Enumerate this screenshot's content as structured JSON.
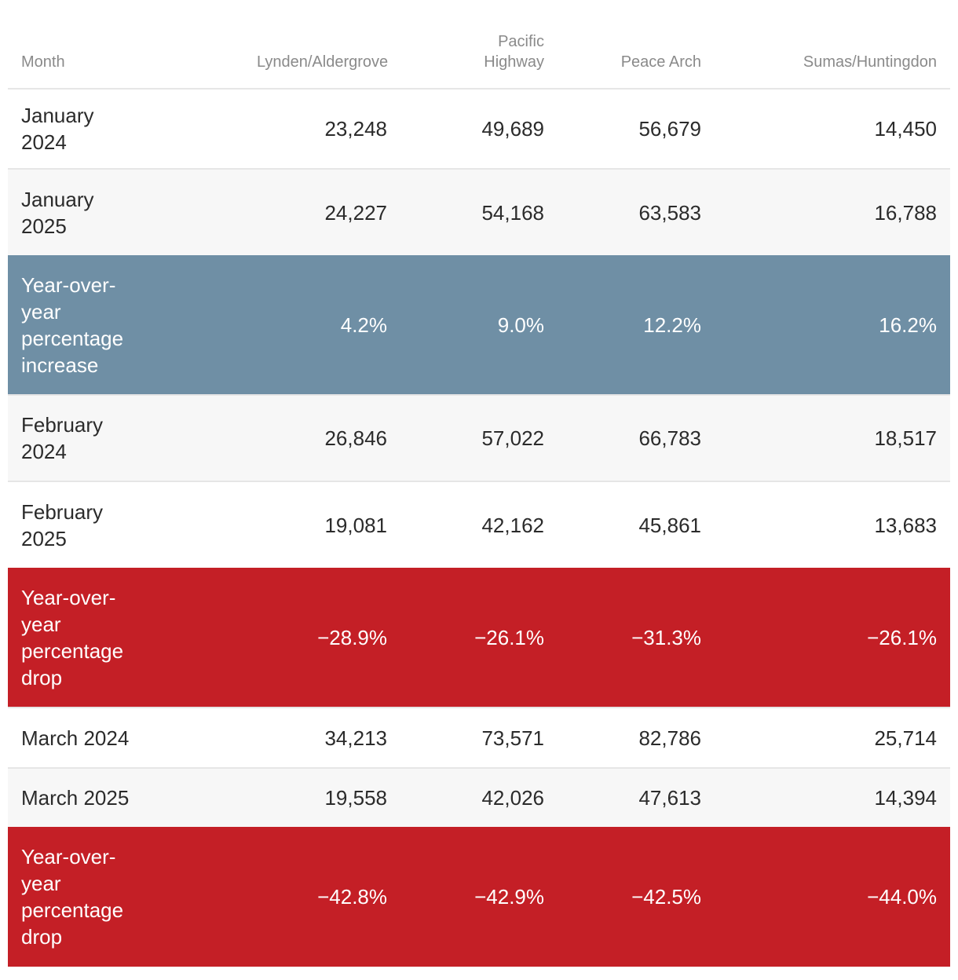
{
  "table": {
    "columns": [
      "Month",
      "Lynden/Aldergrove",
      "Pacific Highway",
      "Peace Arch",
      "Sumas/Huntingdon"
    ],
    "rows": [
      [
        "January 2024",
        "23,248",
        "49,689",
        "56,679",
        "14,450"
      ],
      [
        "January 2025",
        "24,227",
        "54,168",
        "63,583",
        "16,788"
      ],
      [
        "Year-over-year percentage increase",
        "4.2%",
        "9.0%",
        "12.2%",
        "16.2%"
      ],
      [
        "February 2024",
        "26,846",
        "57,022",
        "66,783",
        "18,517"
      ],
      [
        "February 2025",
        "19,081",
        "42,162",
        "45,861",
        "13,683"
      ],
      [
        "Year-over-year percentage drop",
        "−28.9%",
        "−26.1%",
        "−31.3%",
        "−26.1%"
      ],
      [
        "March 2024",
        "34,213",
        "73,571",
        "82,786",
        "25,714"
      ],
      [
        "March 2025",
        "19,558",
        "42,026",
        "47,613",
        "14,394"
      ],
      [
        "Year-over-year percentage drop",
        "−42.8%",
        "−42.9%",
        "−42.5%",
        "−44.0%"
      ]
    ]
  }
}
